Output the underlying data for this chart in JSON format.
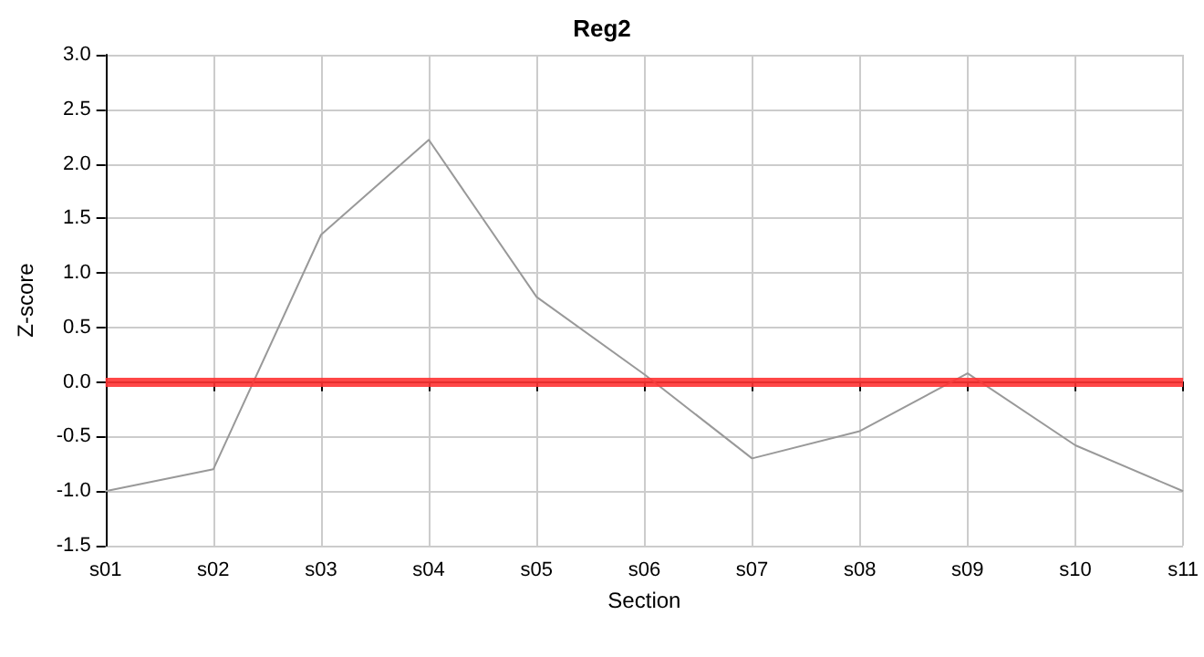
{
  "chart_data": {
    "type": "line",
    "title": "Reg2",
    "xlabel": "Section",
    "ylabel": "Z-score",
    "categories": [
      "s01",
      "s02",
      "s03",
      "s04",
      "s05",
      "s06",
      "s07",
      "s08",
      "s09",
      "s10",
      "s11"
    ],
    "series": [
      {
        "color": "#999999",
        "values": [
          -1.0,
          -0.8,
          1.35,
          2.22,
          0.78,
          0.07,
          -0.7,
          -0.45,
          0.08,
          -0.58,
          -1.0
        ]
      }
    ],
    "ylim": [
      -1.5,
      3.0
    ],
    "yticks": [
      {
        "value": -1.5,
        "label": "-1.5"
      },
      {
        "value": -1,
        "label": "-1.0"
      },
      {
        "value": -0.5,
        "label": "-0.5"
      },
      {
        "value": 0,
        "label": "0.0"
      },
      {
        "value": 0.5,
        "label": "0.5"
      },
      {
        "value": 1,
        "label": "1.0"
      },
      {
        "value": 1.5,
        "label": "1.5"
      },
      {
        "value": 2,
        "label": "2.0"
      },
      {
        "value": 2.5,
        "label": "2.5"
      },
      {
        "value": 3,
        "label": "3.0"
      }
    ],
    "ref_lines": [
      {
        "axis": "y",
        "value": 0,
        "color": "#ff3333"
      }
    ],
    "grid": true,
    "marker": "none",
    "line_style": "solid"
  }
}
